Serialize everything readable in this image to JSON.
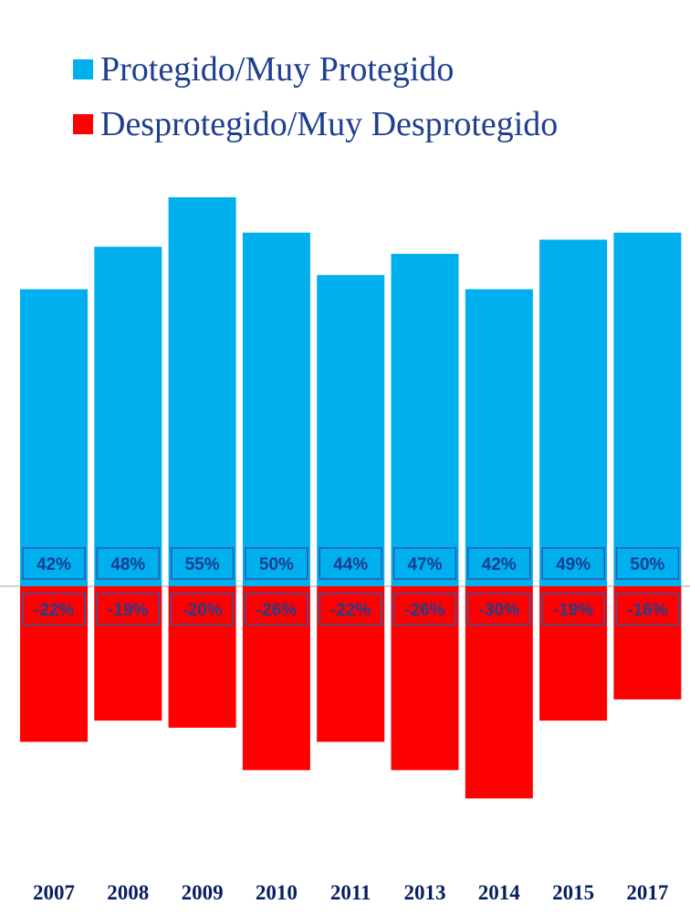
{
  "legend": {
    "positive_label": "Protegido/Muy Protegido",
    "negative_label": "Desprotegido/Muy Desprotegido"
  },
  "colors": {
    "positive": "#00afee",
    "negative": "#ff0000",
    "axis": "#cfcfcf",
    "label_border": "#2e5aa8",
    "positive_label_text": "#163b90",
    "negative_label_text": "#1f3f8f",
    "year_text": "#061f60"
  },
  "chart_data": {
    "type": "bar",
    "categories": [
      "2007",
      "2008",
      "2009",
      "2010",
      "2011",
      "2013",
      "2014",
      "2015",
      "2017"
    ],
    "series": [
      {
        "name": "Protegido/Muy Protegido",
        "values": [
          42,
          48,
          55,
          50,
          44,
          47,
          42,
          49,
          50
        ],
        "labels": [
          "42%",
          "48%",
          "55%",
          "50%",
          "44%",
          "47%",
          "42%",
          "49%",
          "50%"
        ]
      },
      {
        "name": "Desprotegido/Muy Desprotegido",
        "values": [
          -22,
          -19,
          -20,
          -26,
          -22,
          -26,
          -30,
          -19,
          -16
        ],
        "labels": [
          "-22%",
          "-19%",
          "-20%",
          "-26%",
          "-22%",
          "-26%",
          "-30%",
          "-19%",
          "-16%"
        ]
      }
    ],
    "ylim": [
      -30,
      55
    ],
    "grid": false,
    "legend_position": "top"
  }
}
